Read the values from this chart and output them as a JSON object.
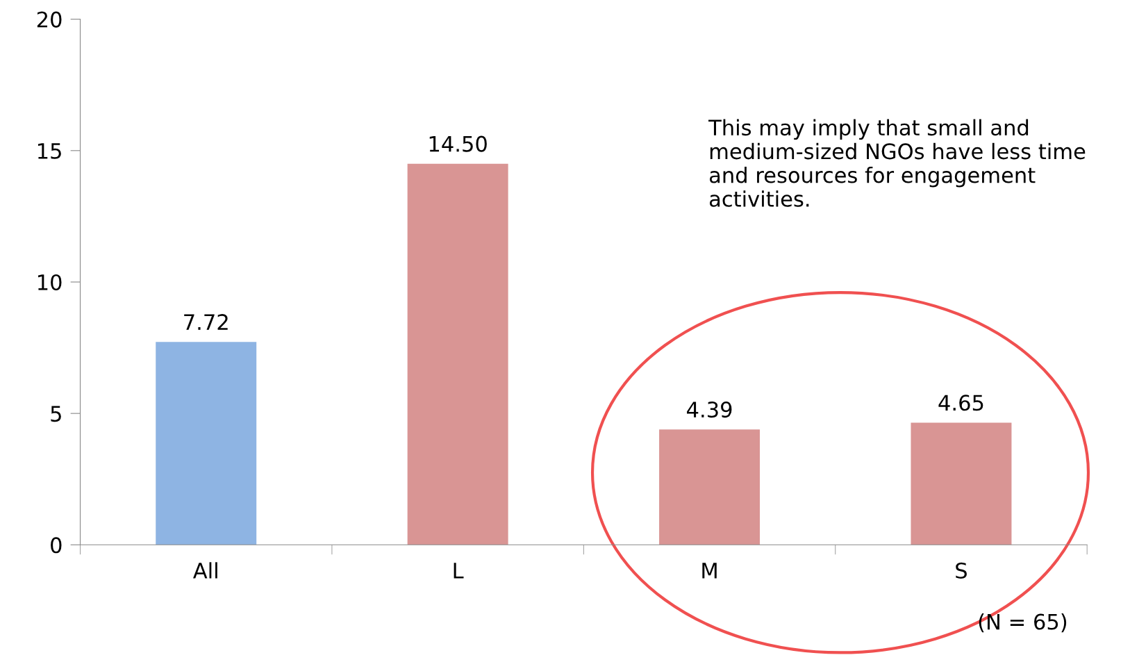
{
  "chart_data": {
    "type": "bar",
    "categories": [
      "All",
      "L",
      "M",
      "S"
    ],
    "values": [
      7.72,
      14.5,
      4.39,
      4.65
    ],
    "colors": [
      "#8eb4e3",
      "#d99594",
      "#d99594",
      "#d99594"
    ],
    "value_labels": [
      "7.72",
      "14.50",
      "4.39",
      "4.65"
    ],
    "ylim": [
      0,
      20
    ],
    "yticks": [
      0,
      5,
      10,
      15,
      20
    ],
    "grid": false,
    "legend": false,
    "annotations": [
      "This may imply that small and medium-sized NGOs have less time and resources for engagement activities.",
      "(N = 65)"
    ]
  }
}
